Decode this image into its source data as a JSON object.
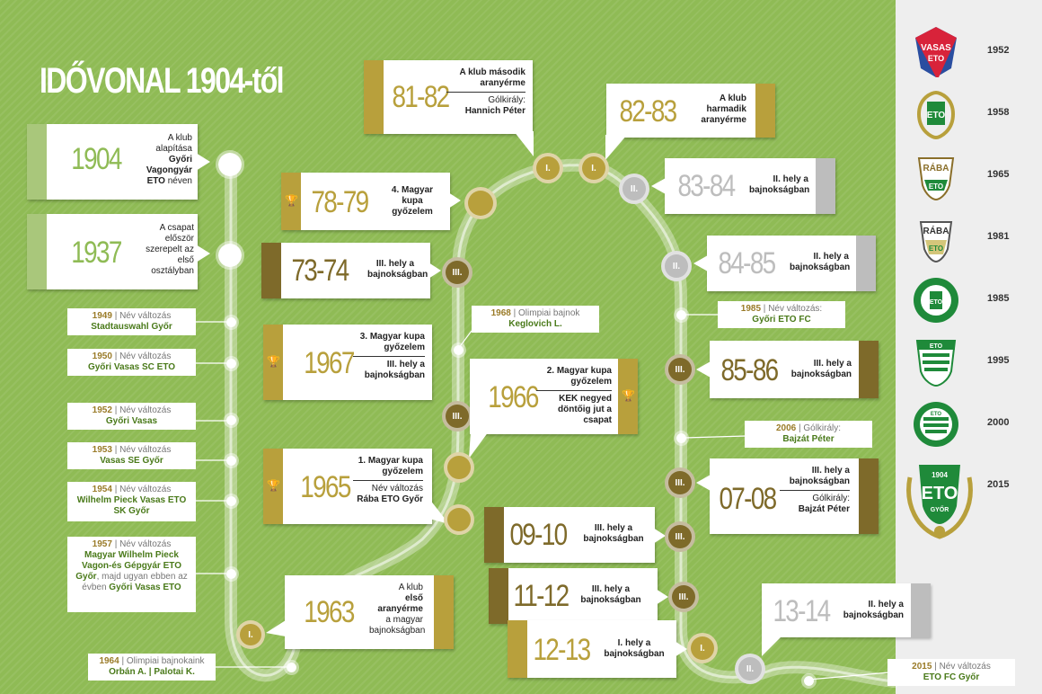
{
  "title": "IDŐVONAL 1904-től",
  "colors": {
    "gold": "#b8a03c",
    "darkgold": "#7e6a2a",
    "green": "#8fbb55",
    "lightgreen": "#a9c77b",
    "gray": "#bdbdbd"
  },
  "cards": {
    "c1904": {
      "year": "1904",
      "t1": "A klub alapítása",
      "t2": "Győri Vagongyár ETO",
      "t3": "néven"
    },
    "c1937": {
      "year": "1937",
      "t1": "A csapat először szerepelt az első osztályban"
    },
    "c7879": {
      "year": "78-79",
      "t1": "4. Magyar kupa győzelem"
    },
    "c7374": {
      "year": "73-74",
      "t1": "III. hely a bajnokságban"
    },
    "c1967": {
      "year": "1967",
      "t1": "3. Magyar kupa győzelem",
      "t2": "III. hely a bajnokságban"
    },
    "c1965": {
      "year": "1965",
      "t1": "1. Magyar kupa győzelem",
      "t2": "Név változás",
      "t3": "Rába ETO Győr"
    },
    "c1963": {
      "year": "1963",
      "t1": "A klub",
      "t2": "első aranyérme",
      "t3": "a magyar bajnokságban"
    },
    "c8182": {
      "year": "81-82",
      "t1": "A klub második aranyérme",
      "t2": "Gólkirály:",
      "t3": "Hannich Péter"
    },
    "c8283": {
      "year": "82-83",
      "t1": "A klub harmadik aranyérme"
    },
    "c1966": {
      "year": "1966",
      "t1": "2. Magyar kupa győzelem",
      "t2": "KEK negyed döntőig jut a csapat"
    },
    "c8384": {
      "year": "83-84",
      "t1": "II. hely a bajnokságban"
    },
    "c8485": {
      "year": "84-85",
      "t1": "II. hely a bajnokságban"
    },
    "c8586": {
      "year": "85-86",
      "t1": "III. hely a bajnokságban"
    },
    "c0708": {
      "year": "07-08",
      "t1": "III. hely a bajnokságban",
      "t2": "Gólkirály:",
      "t3": "Bajzát Péter"
    },
    "c0910": {
      "year": "09-10",
      "t1": "III. hely a bajnokságban"
    },
    "c1112": {
      "year": "11-12",
      "t1": "III. hely a bajnokságban"
    },
    "c1213": {
      "year": "12-13",
      "t1": "I. hely a bajnokságban"
    },
    "c1314": {
      "year": "13-14",
      "t1": "II. hely a bajnokságban"
    }
  },
  "labels": {
    "l1949": {
      "year": "1949",
      "sep": " | ",
      "desc": "Név változás",
      "name": "Stadtauswahl Győr"
    },
    "l1950": {
      "year": "1950",
      "sep": " | ",
      "desc": "Név változás",
      "name": "Győri Vasas SC ETO"
    },
    "l1952": {
      "year": "1952",
      "sep": " | ",
      "desc": "Név változás",
      "name": "Győri Vasas"
    },
    "l1953": {
      "year": "1953",
      "sep": " | ",
      "desc": "Név változás",
      "name": "Vasas SE Győr"
    },
    "l1954": {
      "year": "1954",
      "sep": " | ",
      "desc": "Név változás",
      "name": "Wilhelm Pieck Vasas ETO SK Győr"
    },
    "l1957": {
      "year": "1957",
      "sep": " | ",
      "desc": "Név változás",
      "name": "Magyar Wilhelm Pieck Vagon-és Gépgyár ETO Győr",
      "mid": ", majd ugyan ebben az évben ",
      "name2": "Győri Vasas ETO"
    },
    "l1964": {
      "year": "1964",
      "sep": " | ",
      "desc": "Olimpiai bajnokaink",
      "name": "Orbán A. | Palotai K."
    },
    "l1968": {
      "year": "1968",
      "sep": " | ",
      "desc": "Olimpiai bajnok",
      "name": "Keglovich L."
    },
    "l1985": {
      "year": "1985",
      "sep": " | ",
      "desc": "Név változás:",
      "name": "Győri ETO FC"
    },
    "l2006": {
      "year": "2006",
      "sep": " | ",
      "desc": "Gólkirály:",
      "name": "Bajzát Péter"
    },
    "l2015": {
      "year": "2015",
      "sep": " | ",
      "desc": "Név változás",
      "name": "ETO FC Győr"
    }
  },
  "nodes": {
    "n_i_1963": "I.",
    "n_iii_7374": "III.",
    "n_iii_1967": "III.",
    "n_i_8182": "I.",
    "n_i_8283": "I.",
    "n_ii_8384": "II.",
    "n_ii_8485": "II.",
    "n_iii_8586": "III.",
    "n_iii_0708": "III.",
    "n_iii_0910": "III.",
    "n_iii_1112": "III.",
    "n_i_1213": "I.",
    "n_ii_1314": "II."
  },
  "logos": [
    {
      "name": "VASAS ETO",
      "year": "1952"
    },
    {
      "name": "ETO",
      "year": "1958"
    },
    {
      "name": "RÁBA ETO",
      "year": "1965"
    },
    {
      "name": "RÁBA ETO",
      "year": "1981"
    },
    {
      "name": "GYŐRI ETO FC",
      "year": "1985"
    },
    {
      "name": "ETO",
      "year": "1995"
    },
    {
      "name": "ETO",
      "year": "2000"
    },
    {
      "name": "1904 ETO GYŐR",
      "year": "2015"
    }
  ]
}
